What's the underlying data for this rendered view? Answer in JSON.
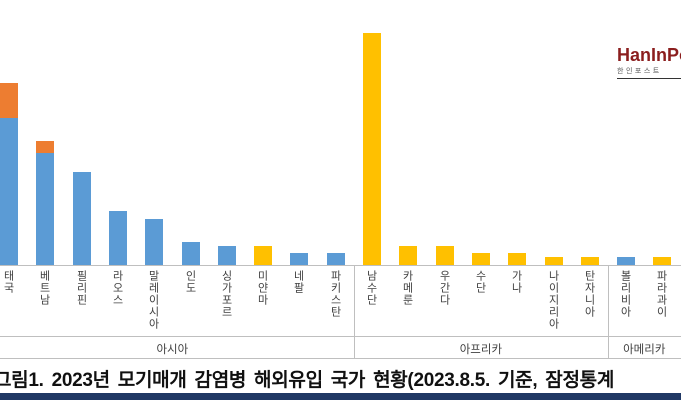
{
  "logo": {
    "brand": "HanInPo",
    "subtitle": "한인포스트",
    "brand_color": "#8b1e1e"
  },
  "caption": {
    "text": "그림1. 2023년 모기매개 감염병 해외유입 국가 현황(2023.8.5. 기준, 잠정통계"
  },
  "chart_data": {
    "type": "bar",
    "stacked": true,
    "title": "",
    "xlabel": "",
    "ylabel": "",
    "legend": "none",
    "gridlines": false,
    "value_axis_visible": false,
    "values_estimated": true,
    "ylim": [
      0,
      62
    ],
    "categories": [
      "태국",
      "베트남",
      "필리핀",
      "라오스",
      "말레이시아",
      "인도",
      "싱가포르",
      "미얀마",
      "네팔",
      "파키스탄",
      "남수단",
      "카메룬",
      "우간다",
      "수단",
      "가나",
      "나이지리아",
      "탄자니아",
      "볼리비아",
      "파라과이"
    ],
    "groups": [
      {
        "label": "아시아",
        "span": [
          0,
          9
        ]
      },
      {
        "label": "아프리카",
        "span": [
          10,
          16
        ]
      },
      {
        "label": "아메리카",
        "span": [
          17,
          18
        ]
      }
    ],
    "series": [
      {
        "name": "blue-series",
        "color": "#5B9BD5",
        "values": [
          38,
          29,
          24,
          14,
          12,
          6,
          5,
          0,
          3,
          3,
          0,
          0,
          0,
          0,
          0,
          0,
          0,
          2,
          0
        ]
      },
      {
        "name": "orange-series",
        "color": "#ED7D31",
        "values": [
          9,
          3,
          0,
          0,
          0,
          0,
          0,
          0,
          0,
          0,
          0,
          0,
          0,
          0,
          0,
          0,
          0,
          0,
          0
        ]
      },
      {
        "name": "yellow-series",
        "color": "#FFC000",
        "values": [
          0,
          0,
          0,
          0,
          0,
          0,
          0,
          5,
          0,
          0,
          60,
          5,
          5,
          3,
          3,
          2,
          2,
          0,
          2
        ]
      }
    ]
  }
}
